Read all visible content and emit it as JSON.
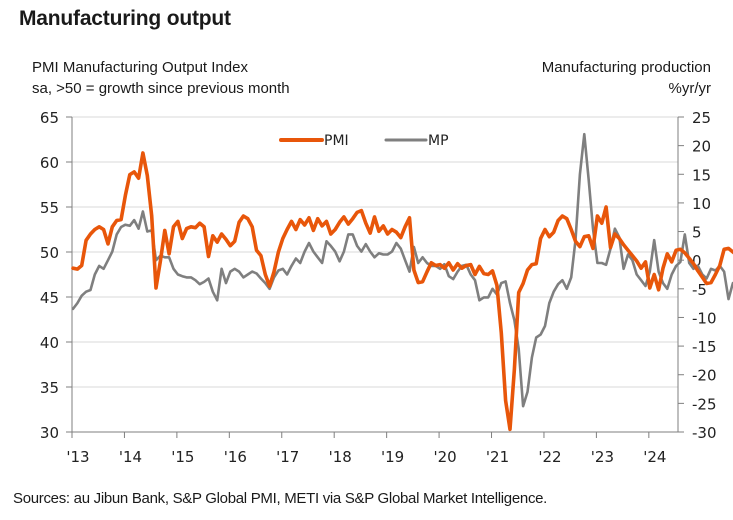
{
  "header": {
    "title": "Manufacturing output",
    "left_subtitle_line1": "PMI Manufacturing Output Index",
    "left_subtitle_line2": "sa, >50 = growth since previous month",
    "right_subtitle_line1": "Manufacturing production",
    "right_subtitle_line2": "%yr/yr"
  },
  "footer": {
    "source": "Sources: au Jibun Bank, S&P Global PMI, METI via S&P Global Market Intelligence."
  },
  "colors": {
    "pmi": "#e8560a",
    "mp": "#7f7f7f",
    "grid": "#d9d9d9",
    "axis": "#7f7f7f"
  },
  "chart_data": {
    "type": "line",
    "title": "Manufacturing output",
    "xlabel": "",
    "ylabel": "PMI Manufacturing Output Index (sa, >50 = growth since previous month)",
    "y2label": "Manufacturing production (%yr/yr)",
    "ylim": [
      30,
      65
    ],
    "y2lim": [
      -30,
      25
    ],
    "yticks": [
      "65",
      "60",
      "55",
      "50",
      "45",
      "40",
      "35",
      "30"
    ],
    "y2ticks": [
      "25",
      "20",
      "15",
      "10",
      "5",
      "0",
      "-5",
      "-10",
      "-15",
      "-20",
      "-25",
      "-30"
    ],
    "xticks": [
      "'13",
      "'14",
      "'15",
      "'16",
      "'17",
      "'18",
      "'19",
      "'20",
      "'21",
      "'22",
      "'23",
      "'24"
    ],
    "x_start": "2013-01",
    "frequency": "monthly",
    "grid": true,
    "legend": "top-center",
    "series": [
      {
        "name": "PMI",
        "axis": "left",
        "values": [
          48.2,
          48.1,
          48.5,
          51.3,
          52.0,
          52.5,
          52.8,
          52.5,
          50.9,
          52.8,
          53.5,
          53.6,
          56.3,
          58.6,
          58.9,
          58.2,
          61.0,
          58.5,
          54.0,
          46.0,
          49.0,
          52.4,
          49.8,
          52.8,
          53.4,
          51.5,
          52.6,
          52.8,
          52.7,
          53.2,
          52.8,
          49.5,
          51.8,
          51.1,
          52.0,
          51.4,
          50.7,
          51.2,
          53.3,
          54.0,
          53.7,
          52.8,
          50.2,
          49.6,
          47.5,
          46.2,
          47.8,
          50.0,
          51.5,
          52.5,
          53.4,
          52.5,
          53.6,
          53.0,
          53.8,
          52.4,
          53.7,
          52.9,
          53.4,
          52.0,
          52.5,
          53.3,
          53.9,
          53.1,
          53.7,
          54.4,
          54.6,
          53.2,
          52.1,
          53.9,
          52.3,
          52.9,
          52.0,
          52.5,
          52.2,
          51.6,
          52.8,
          53.8,
          48.0,
          46.6,
          46.7,
          47.8,
          48.8,
          48.5,
          48.6,
          48.2,
          48.8,
          48.0,
          48.7,
          48.2,
          48.5,
          48.6,
          47.5,
          48.4,
          47.6,
          47.5,
          47.9,
          46.3,
          41.0,
          33.5,
          30.3,
          37.0,
          45.5,
          46.5,
          48.0,
          48.6,
          48.7,
          51.5,
          52.5,
          51.7,
          52.2,
          53.5,
          54.0,
          53.7,
          52.5,
          51.2,
          50.6,
          51.7,
          51.8,
          50.4,
          54.0,
          53.2,
          55.0,
          50.5,
          52.0,
          51.5,
          50.8,
          50.2,
          49.6,
          49.0,
          48.2,
          48.9,
          46.0,
          47.5,
          45.8,
          48.2,
          49.8,
          48.9,
          50.2,
          50.3,
          49.9,
          49.3,
          48.7,
          47.9,
          47.2,
          46.5,
          46.6,
          47.5,
          48.5,
          50.3,
          50.4,
          50.0,
          49.6
        ]
      },
      {
        "name": "MP",
        "axis": "right",
        "values": [
          -8.5,
          -7.5,
          -6.2,
          -5.5,
          -5.2,
          -2.5,
          -1.0,
          -1.5,
          0.0,
          1.5,
          4.5,
          5.8,
          6.2,
          6.0,
          7.0,
          5.5,
          8.5,
          5.0,
          5.2,
          0.0,
          0.8,
          0.5,
          0.5,
          -1.5,
          -2.5,
          -2.8,
          -3.0,
          -3.0,
          -3.5,
          -4.2,
          -3.8,
          -3.2,
          -5.5,
          -7.0,
          -1.5,
          -4.0,
          -2.0,
          -1.5,
          -2.0,
          -3.0,
          -2.5,
          -2.0,
          -2.3,
          -3.2,
          -4.0,
          -5.0,
          -3.0,
          -1.8,
          -1.5,
          -2.5,
          -1.0,
          0.3,
          -0.5,
          1.5,
          3.0,
          1.5,
          0.5,
          -0.5,
          3.3,
          2.5,
          1.5,
          -0.2,
          1.5,
          4.5,
          4.5,
          2.5,
          1.5,
          2.8,
          1.5,
          0.5,
          1.2,
          1.0,
          1.0,
          1.5,
          3.0,
          2.0,
          0.0,
          -2.0,
          2.3,
          -0.5,
          0.5,
          -0.5,
          -1.0,
          -1.0,
          -1.5,
          -0.7,
          -2.8,
          -3.3,
          -2.0,
          -1.0,
          -0.8,
          -2.5,
          -3.5,
          -7.0,
          -6.5,
          -6.5,
          -5.0,
          -6.0,
          -4.0,
          -3.7,
          -7.5,
          -10.5,
          -15.5,
          -25.5,
          -23.0,
          -17.0,
          -13.5,
          -13.0,
          -11.5,
          -7.5,
          -5.5,
          -4.2,
          -3.5,
          -5.0,
          -3.0,
          3.5,
          15.0,
          22.0,
          14.0,
          5.5,
          -0.5,
          -0.5,
          -0.8,
          2.0,
          5.5,
          4.0,
          -1.5,
          1.0,
          0.0,
          -2.5,
          -3.5,
          -4.5,
          -2.0,
          3.5,
          -2.0,
          -4.0,
          -5.0,
          -2.5,
          -1.0,
          -0.3,
          4.5,
          -0.5,
          -1.5,
          -1.0,
          -2.5,
          -3.2,
          -1.5,
          -1.8,
          -1.0,
          -2.0,
          -6.8,
          -4.0,
          -5.5,
          -2.0,
          1.0
        ]
      }
    ]
  }
}
